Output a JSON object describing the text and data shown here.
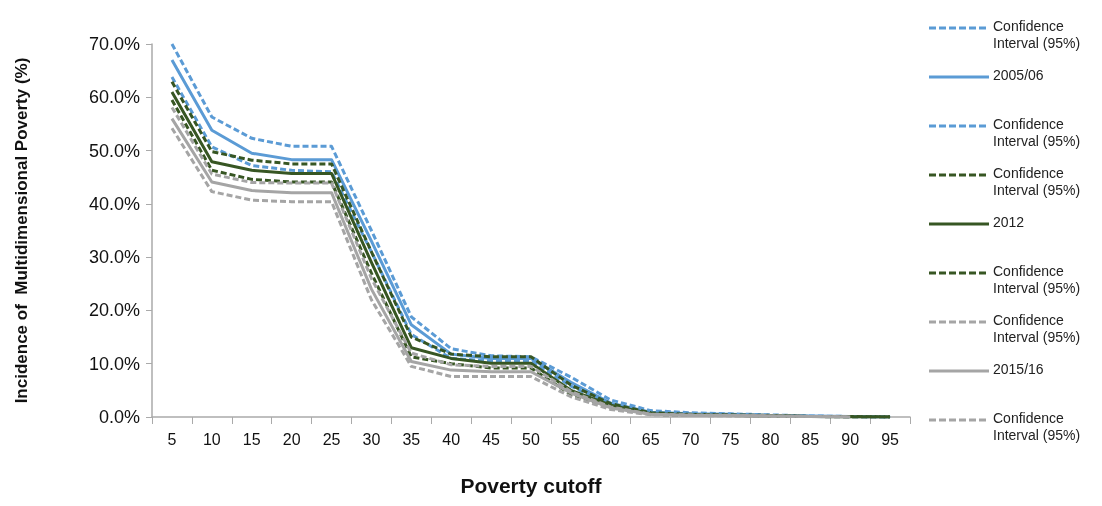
{
  "chart_data": {
    "type": "line",
    "xlabel": "Poverty cutoff",
    "ylabel": "Incidence of  Multidimensional Poverty (%)",
    "categories": [
      "5",
      "10",
      "15",
      "20",
      "25",
      "30",
      "35",
      "40",
      "45",
      "50",
      "55",
      "60",
      "65",
      "70",
      "75",
      "80",
      "85",
      "90",
      "95"
    ],
    "ylim": [
      0,
      70
    ],
    "yticks": [
      {
        "value": 0,
        "label": "0.0%"
      },
      {
        "value": 10,
        "label": "10.0%"
      },
      {
        "value": 20,
        "label": "20.0%"
      },
      {
        "value": 30,
        "label": "30.0%"
      },
      {
        "value": 40,
        "label": "40.0%"
      },
      {
        "value": 50,
        "label": "50.0%"
      },
      {
        "value": 60,
        "label": "60.0%"
      },
      {
        "value": 70,
        "label": "70.0%"
      }
    ],
    "grid": false,
    "legend": "right",
    "marker": "none",
    "series": [
      {
        "name": "Confidence Interval (95%)",
        "color": "#5b9bd5",
        "line_style": "dashed",
        "values": [
          70,
          56.3,
          52.3,
          50.8,
          50.8,
          35,
          18.8,
          12.8,
          11.5,
          11.3,
          7.5,
          3.2,
          1.2,
          0.8,
          0.6,
          0.4,
          0.2,
          0.1,
          0
        ]
      },
      {
        "name": "2005/06",
        "color": "#5b9bd5",
        "line_style": "solid",
        "values": [
          67,
          53.8,
          49.5,
          48.3,
          48.3,
          33,
          17.3,
          11.8,
          11,
          11,
          6.5,
          2.6,
          0.9,
          0.6,
          0.5,
          0.3,
          0.2,
          0.1,
          0
        ]
      },
      {
        "name": "Confidence Interval (95%)",
        "color": "#5b9bd5",
        "line_style": "dashed",
        "values": [
          63.8,
          50.7,
          47.2,
          46.3,
          46,
          31,
          15.5,
          11,
          10.5,
          10.5,
          5.8,
          2.2,
          0.7,
          0.5,
          0.4,
          0.3,
          0.1,
          0,
          0
        ]
      },
      {
        "name": "Confidence Interval (95%)",
        "color": "#375623",
        "line_style": "dashed",
        "values": [
          62.9,
          49.8,
          48.2,
          47.5,
          47.5,
          31,
          15,
          11.8,
          11.3,
          11.3,
          6,
          2.5,
          0.8,
          0.5,
          0.4,
          0.3,
          0.1,
          0.1,
          0
        ]
      },
      {
        "name": "2012",
        "color": "#375623",
        "line_style": "solid",
        "values": [
          61,
          47.9,
          46.3,
          45.7,
          45.7,
          29,
          13,
          11,
          10.1,
          10.1,
          5,
          2.2,
          0.6,
          0.4,
          0.3,
          0.2,
          0.1,
          0,
          0
        ]
      },
      {
        "name": "Confidence Interval (95%)",
        "color": "#375623",
        "line_style": "dashed",
        "values": [
          59.5,
          46.3,
          44.6,
          44.1,
          44.1,
          27,
          11.3,
          10,
          9.2,
          9.2,
          4.2,
          1.8,
          0.5,
          0.3,
          0.3,
          0.2,
          0.1,
          0,
          0
        ]
      },
      {
        "name": "Confidence Interval (95%)",
        "color": "#a5a5a5",
        "line_style": "dashed",
        "values": [
          58.1,
          45.6,
          44,
          43.9,
          43.9,
          26,
          12,
          9.8,
          9.5,
          9.5,
          4.8,
          1.9,
          0.5,
          0.4,
          0.3,
          0.2,
          0.1,
          0,
          null
        ]
      },
      {
        "name": "2015/16",
        "color": "#a5a5a5",
        "line_style": "solid",
        "values": [
          56,
          44.1,
          42.5,
          42.1,
          42.1,
          24,
          10.4,
          8.8,
          8.5,
          8.5,
          4.5,
          1.7,
          0.5,
          0.3,
          0.3,
          0.2,
          0.1,
          0,
          null
        ]
      },
      {
        "name": "Confidence Interval (95%)",
        "color": "#a5a5a5",
        "line_style": "dashed",
        "values": [
          54.2,
          42.3,
          40.7,
          40.4,
          40.4,
          22,
          9.5,
          7.6,
          7.6,
          7.6,
          3.8,
          1.4,
          0.4,
          0.3,
          0.2,
          0.1,
          0.1,
          0,
          null
        ]
      }
    ]
  }
}
